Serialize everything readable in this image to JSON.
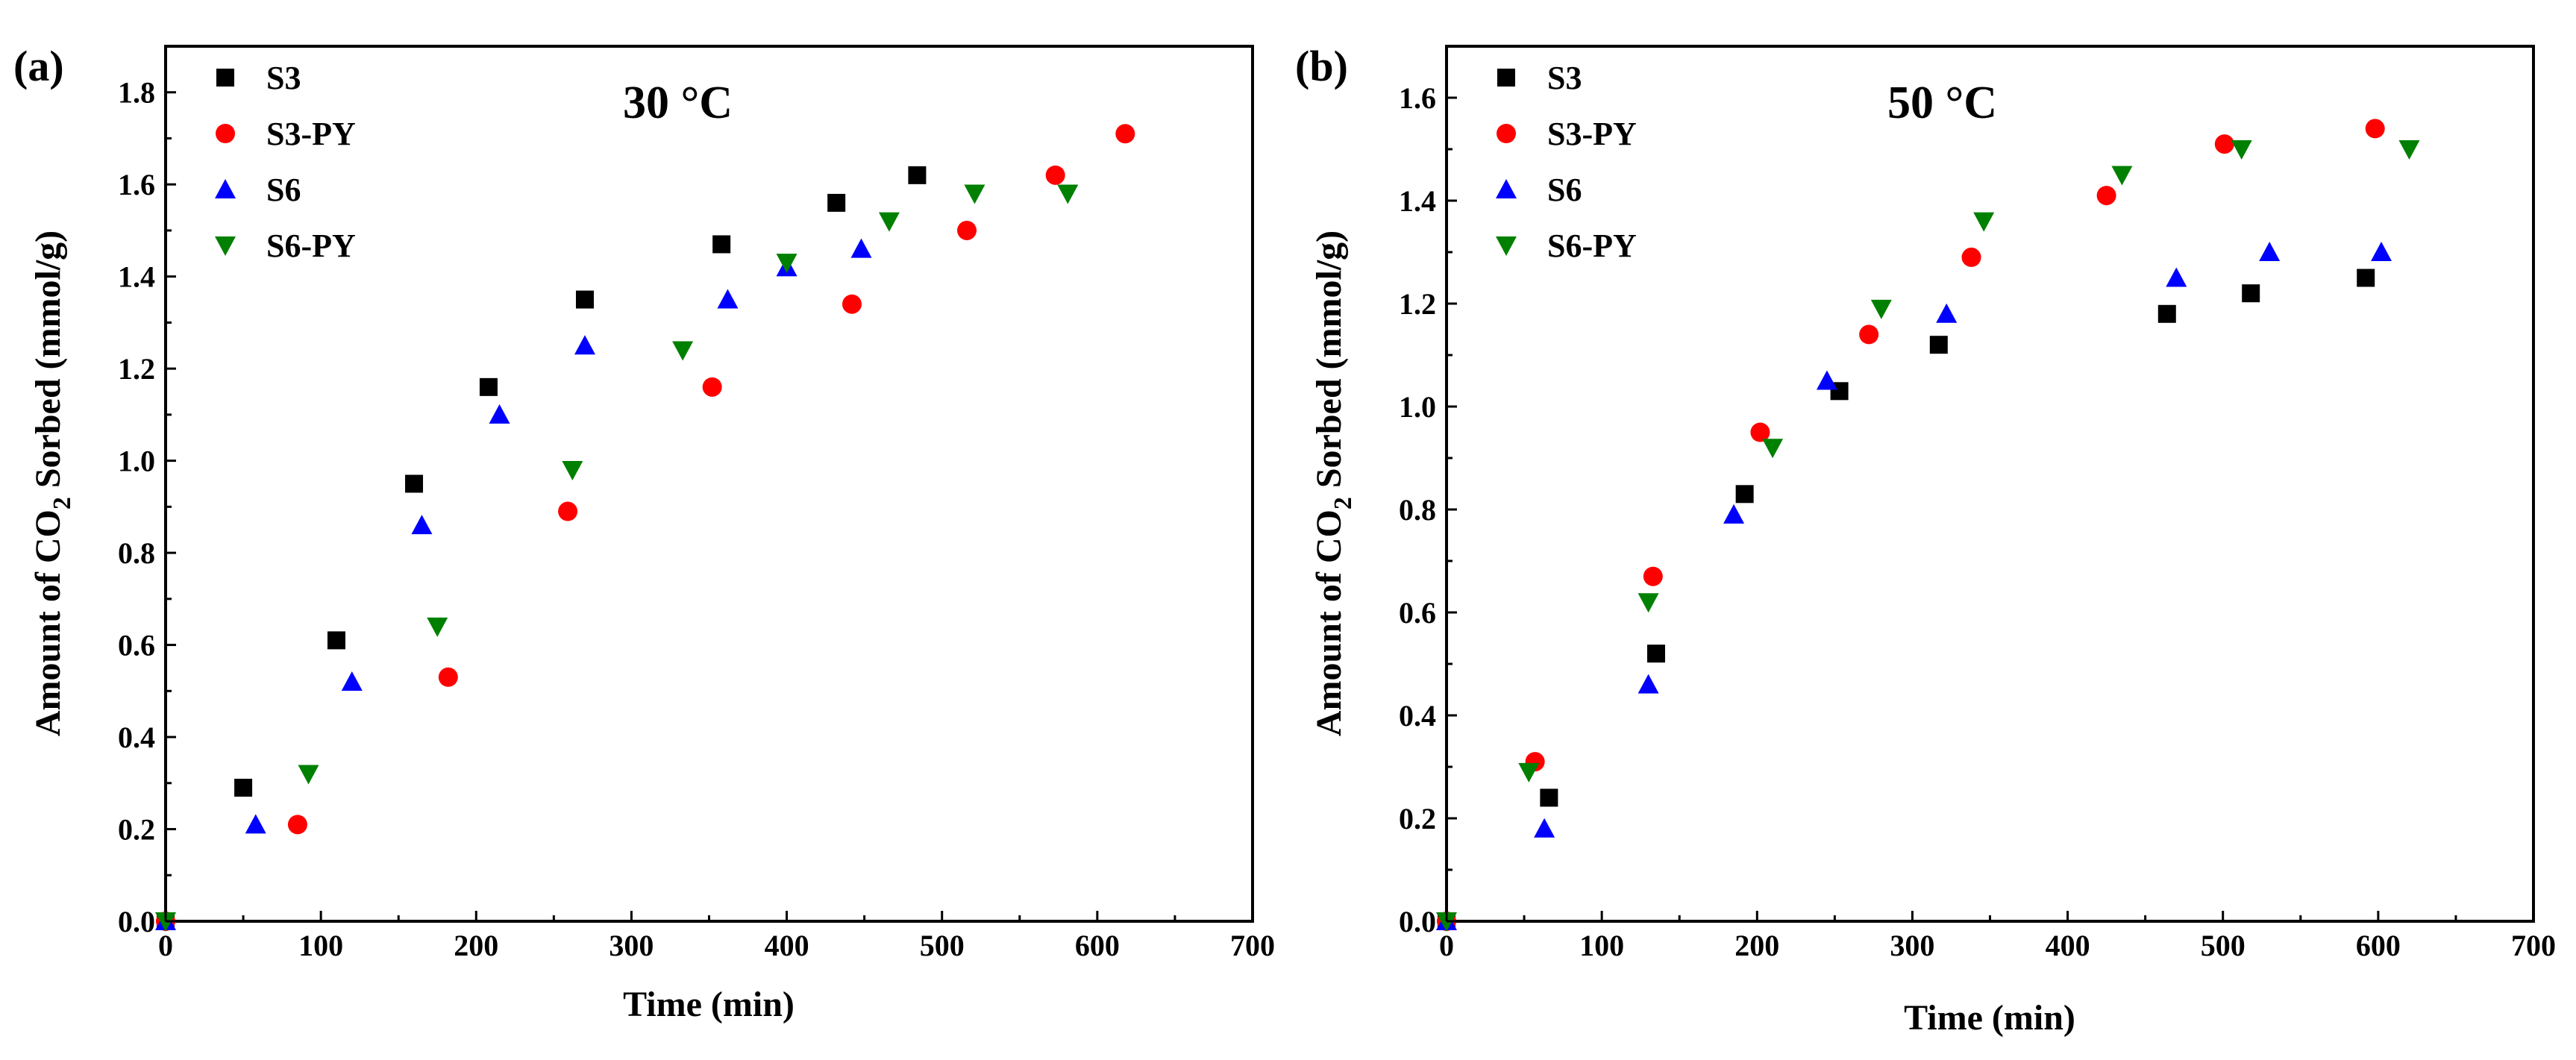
{
  "figure": {
    "colors": {
      "S3": "#000000",
      "S3-PY": "#ff0000",
      "S6": "#0000ff",
      "S6-PY": "#008000"
    },
    "marker_shapes": {
      "S3": "square",
      "S3-PY": "circle",
      "S6": "triangle-up",
      "S6-PY": "triangle-down"
    }
  },
  "chart_data": [
    {
      "type": "scatter",
      "panel_label": "(a)",
      "annotation": "30 °C",
      "xlabel": "Time (min)",
      "ylabel": {
        "prefix": "Amount of CO",
        "subscript": "2",
        "suffix": " Sorbed (mmol/g)"
      },
      "xlim": [
        0,
        700
      ],
      "ylim": [
        0,
        1.9
      ],
      "xticks": [
        "0",
        "100",
        "200",
        "300",
        "400",
        "500",
        "600",
        "700"
      ],
      "yticks": [
        "0.0",
        "0.2",
        "0.4",
        "0.6",
        "0.8",
        "1.0",
        "1.2",
        "1.4",
        "1.6",
        "1.8"
      ],
      "legend": [
        "S3",
        "S3-PY",
        "S6",
        "S6-PY"
      ],
      "legend_position": "top-left",
      "series": [
        {
          "name": "S3",
          "x": [
            0,
            50,
            110,
            160,
            208,
            270,
            358,
            432,
            484
          ],
          "y": [
            0,
            0.29,
            0.61,
            0.95,
            1.16,
            1.35,
            1.47,
            1.56,
            1.62
          ]
        },
        {
          "name": "S3-PY",
          "x": [
            0,
            85,
            182,
            259,
            352,
            442,
            516,
            573,
            618
          ],
          "y": [
            0,
            0.21,
            0.53,
            0.89,
            1.16,
            1.34,
            1.5,
            1.62,
            1.71
          ]
        },
        {
          "name": "S6",
          "x": [
            0,
            58,
            120,
            165,
            215,
            270,
            362,
            400,
            448
          ],
          "y": [
            0,
            0.21,
            0.52,
            0.86,
            1.1,
            1.25,
            1.35,
            1.42,
            1.46
          ]
        },
        {
          "name": "S6-PY",
          "x": [
            0,
            92,
            175,
            262,
            333,
            400,
            466,
            521,
            581
          ],
          "y": [
            0,
            0.32,
            0.64,
            0.98,
            1.24,
            1.43,
            1.52,
            1.58,
            1.58
          ]
        }
      ]
    },
    {
      "type": "scatter",
      "panel_label": "(b)",
      "annotation": "50 °C",
      "xlabel": "Time (min)",
      "ylabel": {
        "prefix": "Amount of CO",
        "subscript": "2",
        "suffix": " Sorbed (mmol/g)"
      },
      "xlim": [
        0,
        700
      ],
      "ylim": [
        0,
        1.7
      ],
      "xticks": [
        "0",
        "100",
        "200",
        "300",
        "400",
        "500",
        "600",
        "700"
      ],
      "yticks": [
        "0.0",
        "0.2",
        "0.4",
        "0.6",
        "0.8",
        "1.0",
        "1.2",
        "1.4",
        "1.6"
      ],
      "legend": [
        "S3",
        "S3-PY",
        "S6",
        "S6-PY"
      ],
      "legend_position": "top-left",
      "series": [
        {
          "name": "S3",
          "x": [
            0,
            66,
            135,
            192,
            253,
            317,
            464,
            518,
            592
          ],
          "y": [
            0,
            0.24,
            0.52,
            0.83,
            1.03,
            1.12,
            1.18,
            1.22,
            1.25
          ]
        },
        {
          "name": "S3-PY",
          "x": [
            0,
            57,
            133,
            202,
            272,
            338,
            425,
            501,
            598
          ],
          "y": [
            0,
            0.31,
            0.67,
            0.95,
            1.14,
            1.29,
            1.41,
            1.51,
            1.54
          ]
        },
        {
          "name": "S6",
          "x": [
            0,
            63,
            130,
            185,
            245,
            322,
            470,
            530,
            602
          ],
          "y": [
            0,
            0.18,
            0.46,
            0.79,
            1.05,
            1.18,
            1.25,
            1.3,
            1.3
          ]
        },
        {
          "name": "S6-PY",
          "x": [
            0,
            53,
            130,
            210,
            280,
            346,
            435,
            512,
            620
          ],
          "y": [
            0,
            0.29,
            0.62,
            0.92,
            1.19,
            1.36,
            1.45,
            1.5,
            1.5
          ]
        }
      ]
    }
  ]
}
